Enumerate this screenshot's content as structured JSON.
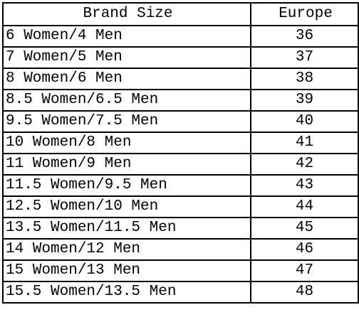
{
  "table": {
    "header": [
      "Brand Size",
      "Europe"
    ],
    "rows": [
      [
        "6 Women/4 Men",
        "36"
      ],
      [
        "7 Women/5 Men",
        "37"
      ],
      [
        "8 Women/6 Men",
        "38"
      ],
      [
        "8.5 Women/6.5 Men",
        "39"
      ],
      [
        "9.5 Women/7.5 Men",
        "40"
      ],
      [
        "10 Women/8 Men",
        "41"
      ],
      [
        "11 Women/9 Men",
        "42"
      ],
      [
        "11.5 Women/9.5 Men",
        "43"
      ],
      [
        "12.5 Women/10 Men",
        "44"
      ],
      [
        "13.5 Women/11.5 Men",
        "45"
      ],
      [
        "14 Women/12 Men",
        "46"
      ],
      [
        "15 Women/13 Men",
        "47"
      ],
      [
        "15.5 Women/13.5 Men",
        "48"
      ]
    ]
  }
}
